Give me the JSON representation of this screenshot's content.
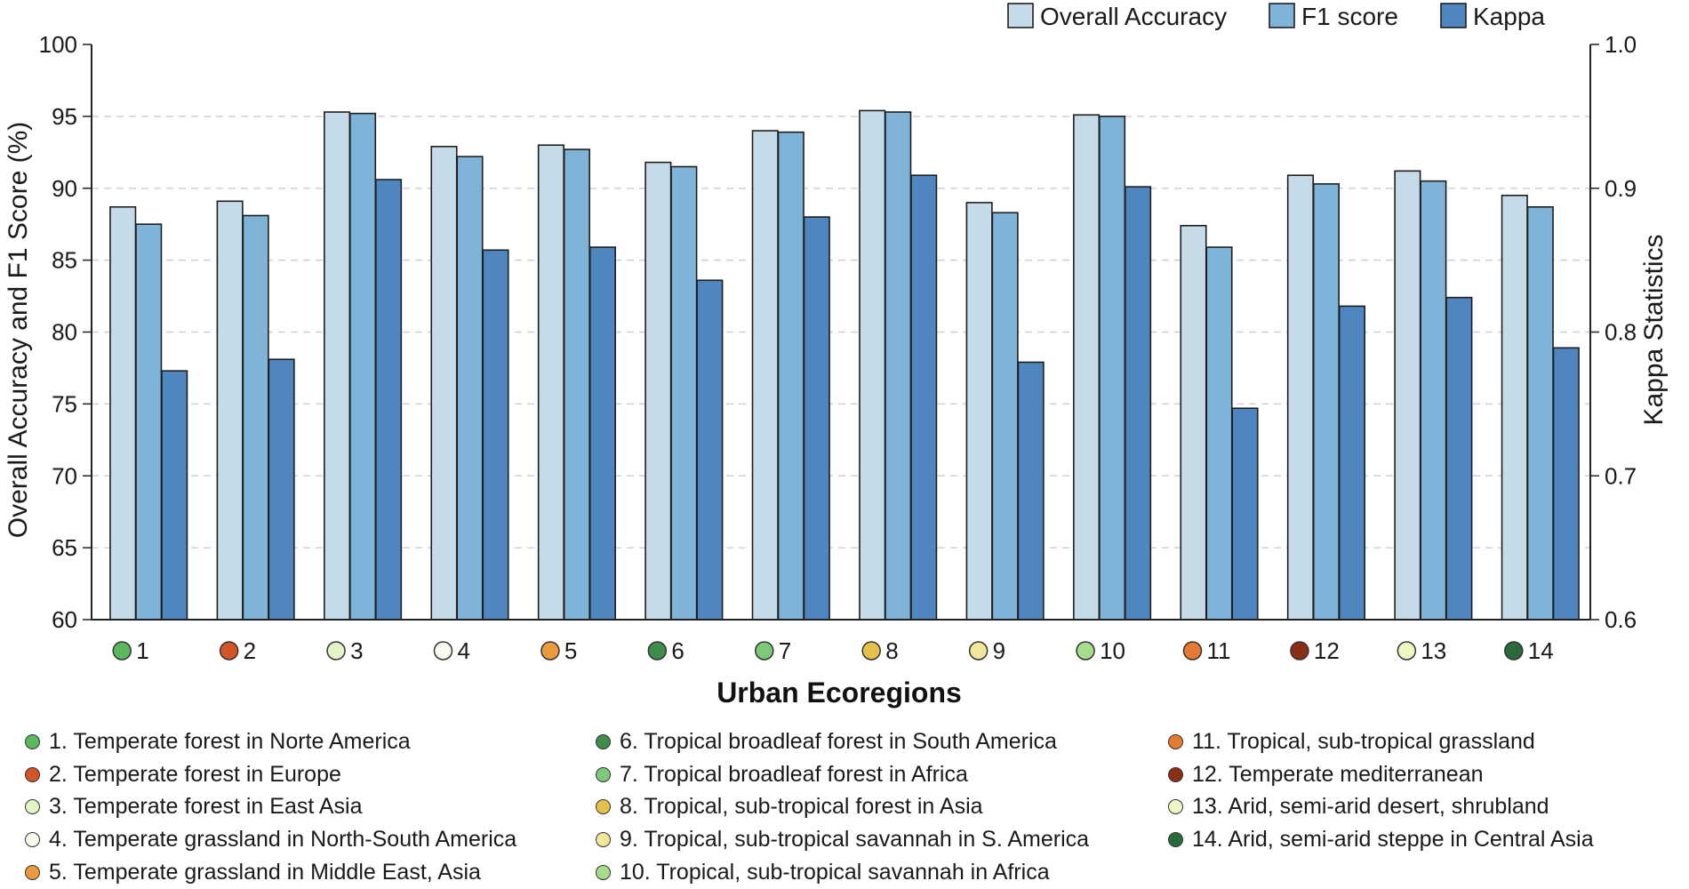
{
  "chart_data": {
    "type": "bar",
    "xlabel": "Urban Ecoregions",
    "ylabel": "Overall Accuracy and F1 Score (%)",
    "y2label": "Kappa Statistics",
    "ylim": [
      60,
      100
    ],
    "y2lim": [
      0.6,
      1.0
    ],
    "yticks": [
      "60",
      "65",
      "70",
      "75",
      "80",
      "85",
      "90",
      "95",
      "100"
    ],
    "y2ticks": [
      "0.6",
      "0.7",
      "0.8",
      "0.9",
      "1.0"
    ],
    "grid": "horizontal dashed",
    "legend_position": "top-right",
    "categories": [
      "1",
      "2",
      "3",
      "4",
      "5",
      "6",
      "7",
      "8",
      "9",
      "10",
      "11",
      "12",
      "13",
      "14"
    ],
    "category_colors": [
      "#5cb85c",
      "#d35427",
      "#e3f5c4",
      "#f8f8ec",
      "#ec9a3c",
      "#3e8d4a",
      "#7cc97a",
      "#e6c04d",
      "#f2e69a",
      "#a6dd8c",
      "#e57a33",
      "#8b2d17",
      "#eef7c4",
      "#2a6b3a"
    ],
    "series": [
      {
        "name": "Overall Accuracy",
        "axis": "left",
        "color": "#c6dbe8",
        "values": [
          88.7,
          89.1,
          95.3,
          92.9,
          93.0,
          91.8,
          94.0,
          95.4,
          89.0,
          95.1,
          87.4,
          90.9,
          91.2,
          89.5
        ]
      },
      {
        "name": "F1 score",
        "axis": "left",
        "color": "#7fb3d8",
        "values": [
          87.5,
          88.1,
          95.2,
          92.2,
          92.7,
          91.5,
          93.9,
          95.3,
          88.3,
          95.0,
          85.9,
          90.3,
          90.5,
          88.7
        ]
      },
      {
        "name": "Kappa",
        "axis": "right",
        "color": "#4f86bf",
        "values": [
          0.773,
          0.781,
          0.906,
          0.857,
          0.859,
          0.836,
          0.88,
          0.909,
          0.779,
          0.901,
          0.747,
          0.818,
          0.824,
          0.789
        ]
      }
    ],
    "ecoregions": [
      {
        "label": "1. Temperate forest in Norte America",
        "color": "#5cb85c"
      },
      {
        "label": "2. Temperate forest in Europe",
        "color": "#d35427"
      },
      {
        "label": "3. Temperate forest in East Asia",
        "color": "#e3f5c4"
      },
      {
        "label": "4. Temperate grassland in North-South America",
        "color": "#f8f8ec"
      },
      {
        "label": "5. Temperate grassland in Middle East, Asia",
        "color": "#ec9a3c"
      },
      {
        "label": "6. Tropical broadleaf forest in South America",
        "color": "#3e8d4a"
      },
      {
        "label": "7. Tropical broadleaf forest in Africa",
        "color": "#7cc97a"
      },
      {
        "label": "8. Tropical, sub-tropical forest in Asia",
        "color": "#e6c04d"
      },
      {
        "label": "9. Tropical, sub-tropical savannah in S. America",
        "color": "#f2e69a"
      },
      {
        "label": "10. Tropical, sub-tropical savannah in Africa",
        "color": "#a6dd8c"
      },
      {
        "label": "11. Tropical, sub-tropical grassland",
        "color": "#e57a33"
      },
      {
        "label": "12. Temperate mediterranean",
        "color": "#8b2d17"
      },
      {
        "label": "13. Arid, semi-arid desert, shrubland",
        "color": "#eef7c4"
      },
      {
        "label": "14. Arid, semi-arid steppe in Central Asia",
        "color": "#2a6b3a"
      }
    ]
  }
}
